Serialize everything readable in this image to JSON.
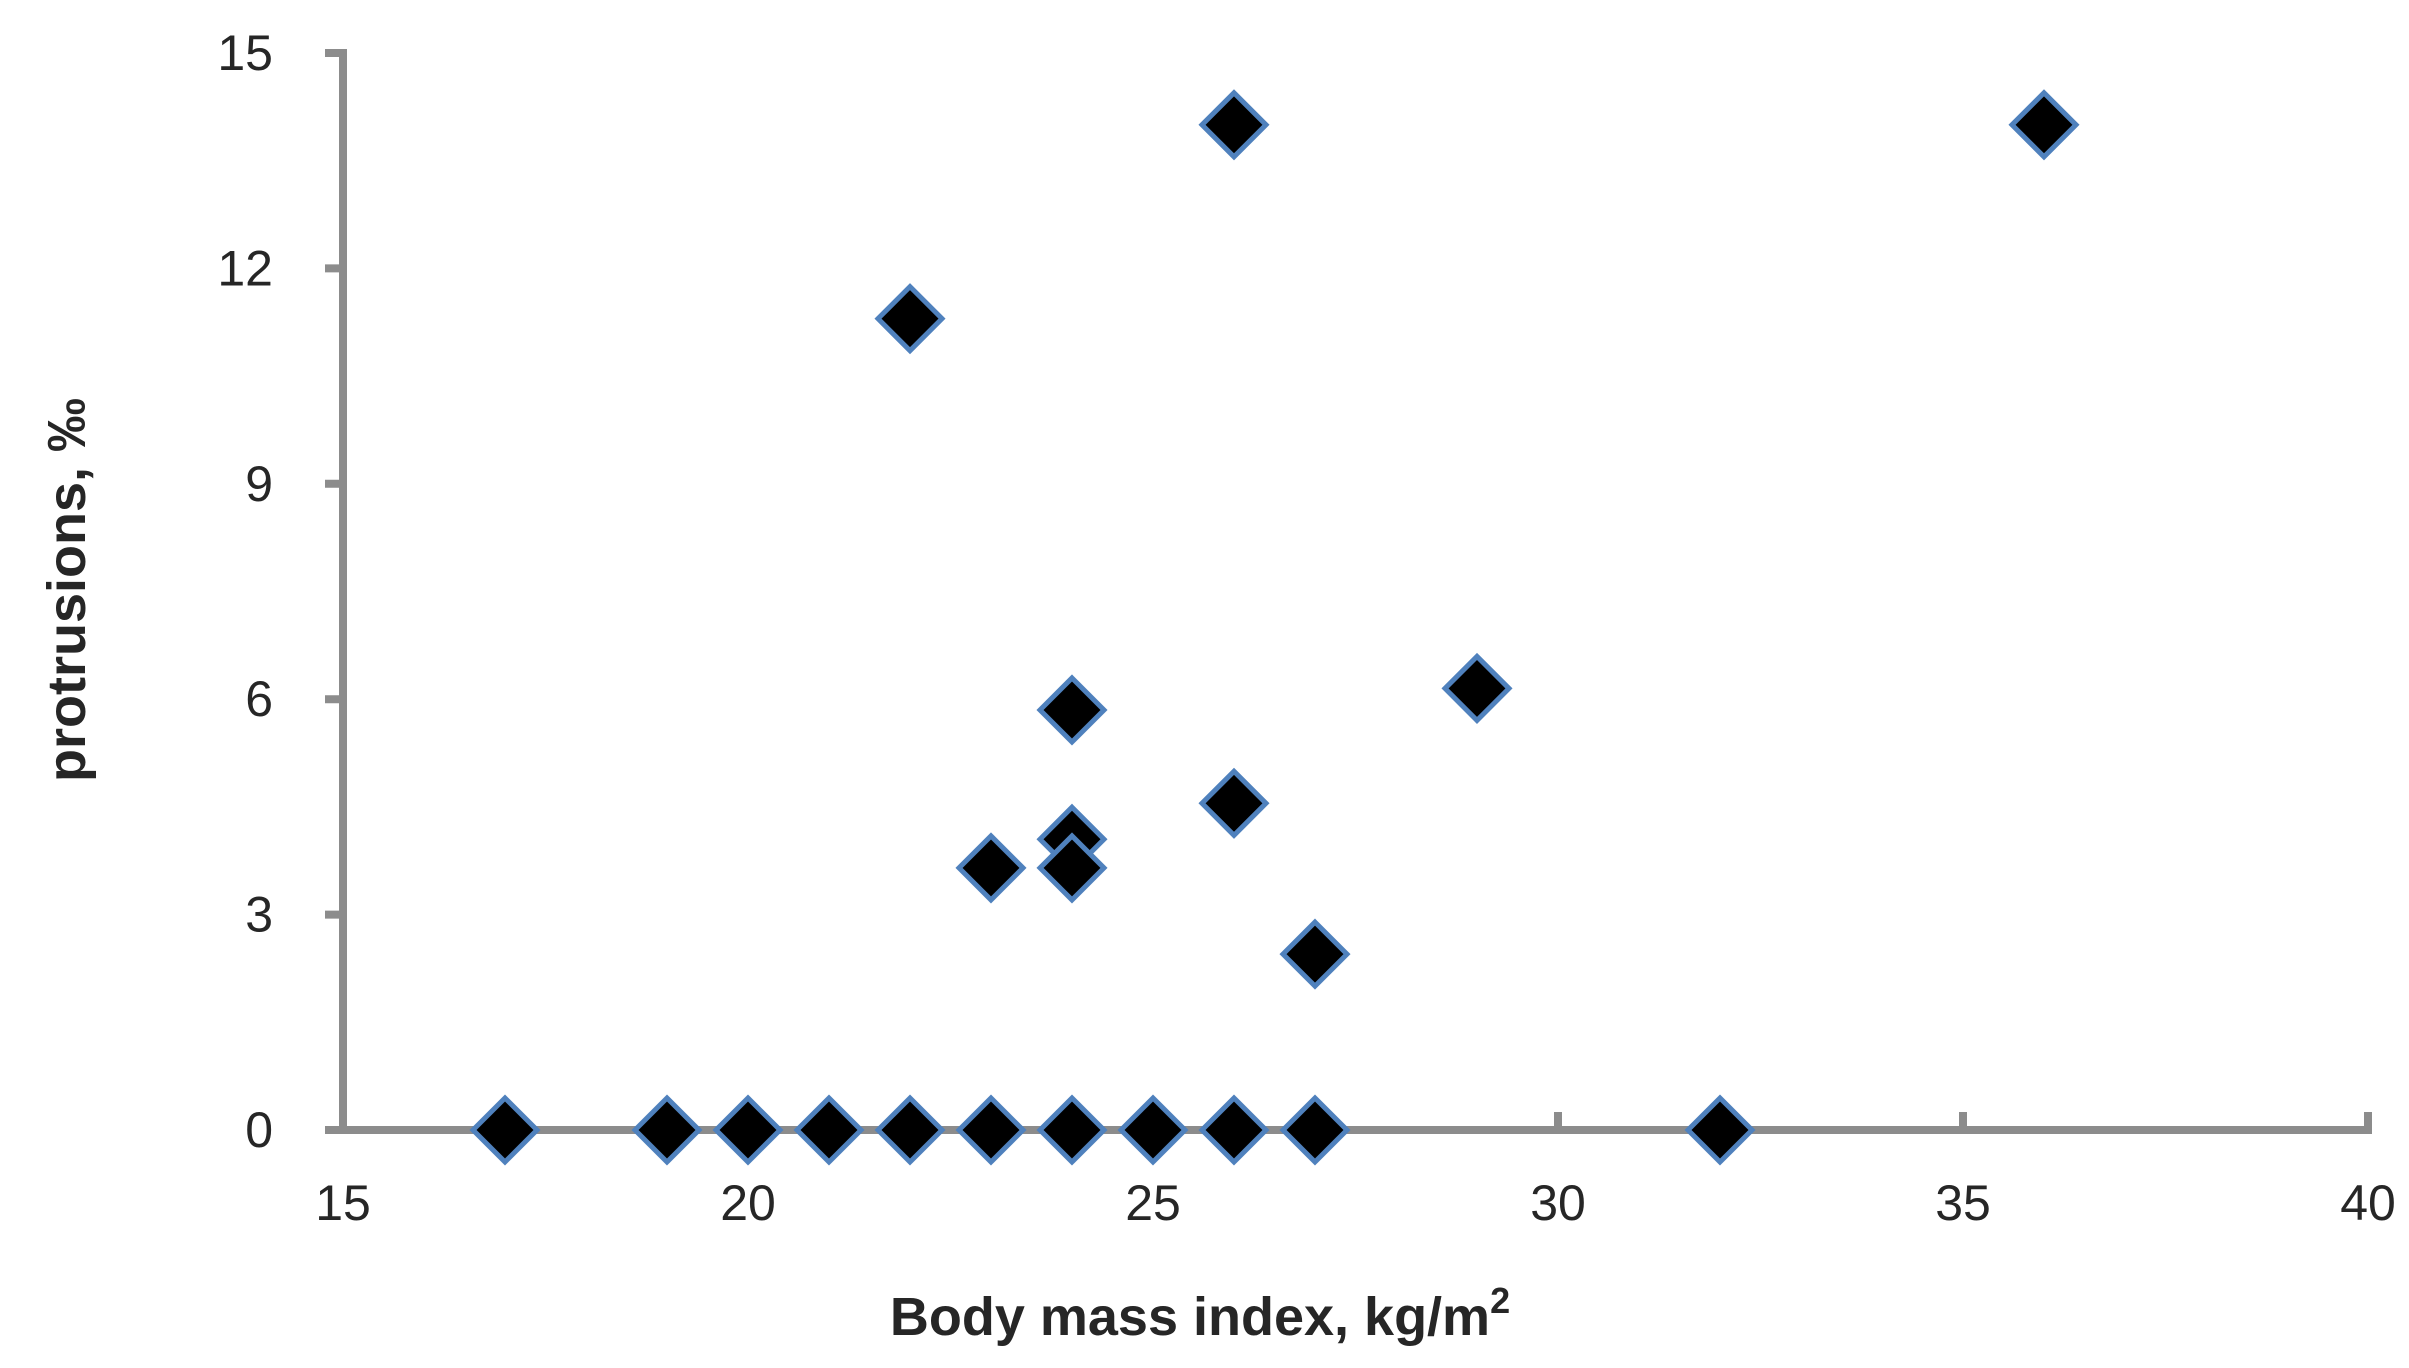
{
  "chart_data": {
    "type": "scatter",
    "title": "",
    "xlabel": "Body mass index, kg/m",
    "xlabel_sup": "2",
    "ylabel": "protrusions, ‰",
    "xlim": [
      15,
      40
    ],
    "ylim": [
      0,
      15
    ],
    "x_ticks": [
      "15",
      "20",
      "25",
      "30",
      "35",
      "40"
    ],
    "y_ticks": [
      "0",
      "3",
      "6",
      "9",
      "12",
      "15"
    ],
    "grid": false,
    "legend": "none",
    "colors": {
      "axis": "#8c8c8c",
      "marker_fill": "#000000",
      "marker_edge": "#4f81bd"
    },
    "points": [
      {
        "x": 17,
        "y": 0
      },
      {
        "x": 19,
        "y": 0
      },
      {
        "x": 20,
        "y": 0
      },
      {
        "x": 21,
        "y": 0
      },
      {
        "x": 22,
        "y": 0
      },
      {
        "x": 23,
        "y": 0
      },
      {
        "x": 24,
        "y": 0
      },
      {
        "x": 25,
        "y": 0
      },
      {
        "x": 26,
        "y": 0
      },
      {
        "x": 27,
        "y": 0
      },
      {
        "x": 32,
        "y": 0
      },
      {
        "x": 22,
        "y": 11.3
      },
      {
        "x": 23,
        "y": 3.65
      },
      {
        "x": 24,
        "y": 5.85
      },
      {
        "x": 24,
        "y": 4.05
      },
      {
        "x": 24,
        "y": 3.65
      },
      {
        "x": 26,
        "y": 14.0
      },
      {
        "x": 26,
        "y": 4.55
      },
      {
        "x": 27,
        "y": 2.45
      },
      {
        "x": 29,
        "y": 6.15
      },
      {
        "x": 36,
        "y": 14.0
      }
    ]
  }
}
